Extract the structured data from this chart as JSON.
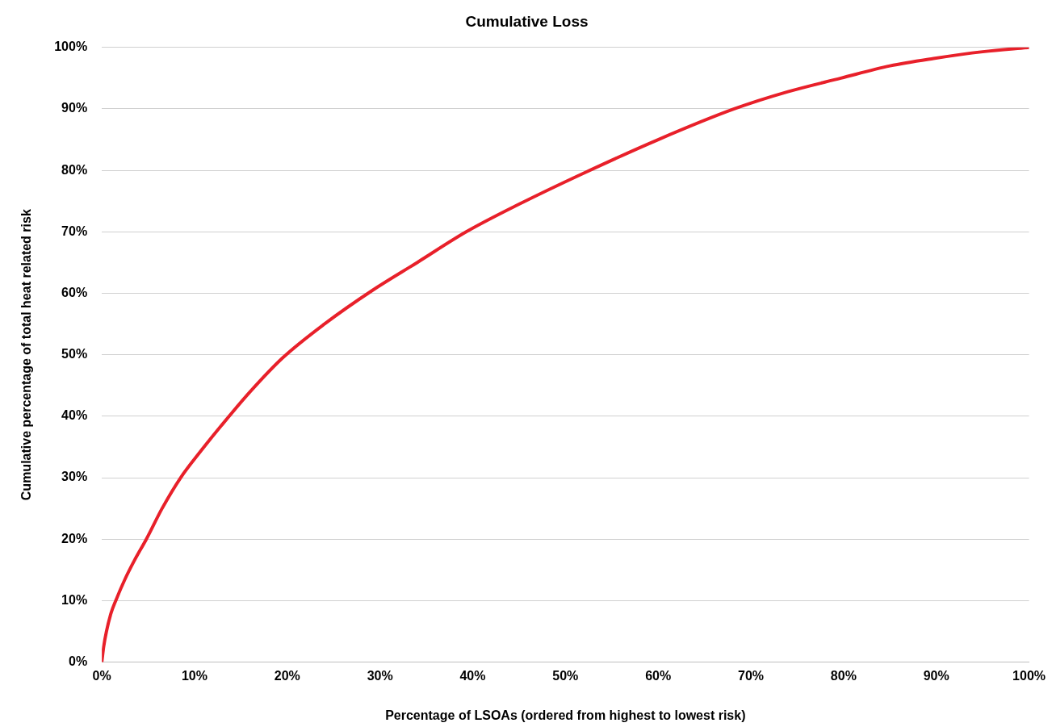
{
  "chart_data": {
    "type": "line",
    "title": "Cumulative Loss",
    "xlabel": "Percentage of LSOAs (ordered from highest to lowest risk)",
    "ylabel": "Cumulative percentage of total heat related risk",
    "series": [
      {
        "color": "#e8202a",
        "x": [
          0,
          0.2,
          0.5,
          1,
          1.5,
          2.5,
          3.5,
          4.8,
          6.5,
          8.5,
          10.5,
          12.9,
          16,
          19.5,
          24,
          29.2,
          34,
          39.3,
          45,
          51.9,
          60,
          68.2,
          74,
          79.7,
          85,
          89.7,
          95,
          100
        ],
        "values": [
          0,
          2.5,
          5,
          8,
          10,
          13.5,
          16.5,
          20,
          25,
          30,
          34,
          38.5,
          44,
          49.5,
          55,
          60.5,
          65,
          70,
          74.5,
          79.5,
          85,
          90,
          92.8,
          95,
          97,
          98.2,
          99.3,
          100
        ]
      }
    ],
    "xlim": [
      0,
      100
    ],
    "ylim": [
      0,
      100
    ],
    "xticks": [
      {
        "value": 0,
        "label": "0%"
      },
      {
        "value": 10,
        "label": "10%"
      },
      {
        "value": 20,
        "label": "20%"
      },
      {
        "value": 30,
        "label": "30%"
      },
      {
        "value": 40,
        "label": "40%"
      },
      {
        "value": 50,
        "label": "50%"
      },
      {
        "value": 60,
        "label": "60%"
      },
      {
        "value": 70,
        "label": "70%"
      },
      {
        "value": 80,
        "label": "80%"
      },
      {
        "value": 90,
        "label": "90%"
      },
      {
        "value": 100,
        "label": "100%"
      }
    ],
    "yticks": [
      {
        "value": 0,
        "label": "0%"
      },
      {
        "value": 10,
        "label": "10%"
      },
      {
        "value": 20,
        "label": "20%"
      },
      {
        "value": 30,
        "label": "30%"
      },
      {
        "value": 40,
        "label": "40%"
      },
      {
        "value": 50,
        "label": "50%"
      },
      {
        "value": 60,
        "label": "60%"
      },
      {
        "value": 70,
        "label": "70%"
      },
      {
        "value": 80,
        "label": "80%"
      },
      {
        "value": 90,
        "label": "90%"
      },
      {
        "value": 100,
        "label": "100%"
      }
    ],
    "grid": "y",
    "marker": "none",
    "line_style": "solid"
  }
}
